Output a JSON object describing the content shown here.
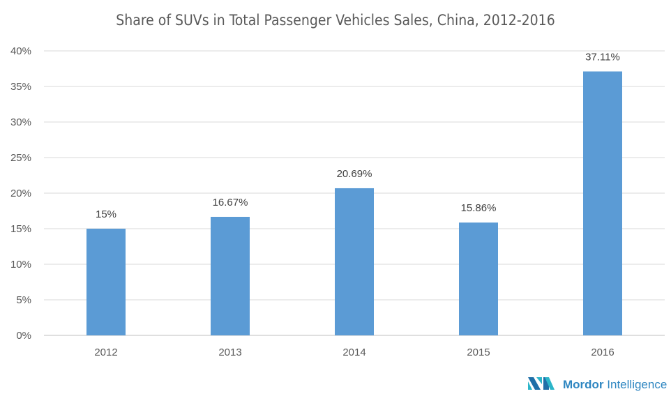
{
  "chart_data": {
    "type": "bar",
    "title": "Share of SUVs in Total Passenger Vehicles Sales, China, 2012-2016",
    "categories": [
      "2012",
      "2013",
      "2014",
      "2015",
      "2016"
    ],
    "values": [
      15,
      16.67,
      20.69,
      15.86,
      37.11
    ],
    "data_labels": [
      "15%",
      "16.67%",
      "20.69%",
      "15.86%",
      "37.11%"
    ],
    "yticks": [
      "0%",
      "5%",
      "10%",
      "15%",
      "20%",
      "25%",
      "30%",
      "35%",
      "40%"
    ],
    "ylim": [
      0,
      40
    ],
    "xlabel": "",
    "ylabel": "",
    "grid": true,
    "bar_color": "#5b9bd5"
  },
  "logo": {
    "text_bold": "Mordor",
    "text_light": "Intelligence",
    "color": "#2e86c1"
  }
}
